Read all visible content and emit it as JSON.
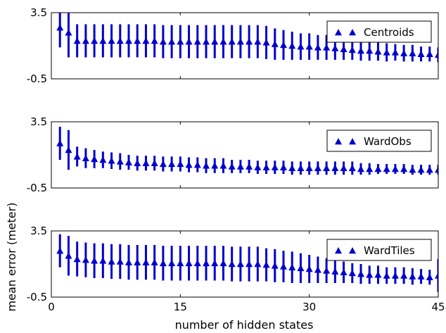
{
  "chart_data": {
    "type": "scatter",
    "xlabel": "number of hidden states",
    "ylabel": "mean error (meter)",
    "xlim": [
      0,
      45
    ],
    "xticks": [
      "0",
      "15",
      "30",
      "45"
    ],
    "ylim": [
      -0.5,
      3.5
    ],
    "yticks": [
      "3.5",
      "-0.5"
    ],
    "marker": "triangle-up",
    "color": "#0000cc",
    "grid": false,
    "legend_position": "top-right",
    "panels": [
      {
        "legend_label": "Centroids",
        "x": [
          1,
          2,
          3,
          4,
          5,
          6,
          7,
          8,
          9,
          10,
          11,
          12,
          13,
          14,
          15,
          16,
          17,
          18,
          19,
          20,
          21,
          22,
          23,
          24,
          25,
          26,
          27,
          28,
          29,
          30,
          31,
          32,
          33,
          34,
          35,
          36,
          37,
          38,
          39,
          40,
          41,
          42,
          43,
          44,
          45
        ],
        "y": [
          2.6,
          2.3,
          1.8,
          1.8,
          1.8,
          1.8,
          1.8,
          1.8,
          1.8,
          1.8,
          1.8,
          1.8,
          1.75,
          1.75,
          1.75,
          1.75,
          1.75,
          1.75,
          1.75,
          1.75,
          1.75,
          1.75,
          1.75,
          1.75,
          1.7,
          1.6,
          1.55,
          1.5,
          1.45,
          1.45,
          1.4,
          1.4,
          1.35,
          1.3,
          1.25,
          1.2,
          1.2,
          1.15,
          1.1,
          1.1,
          1.05,
          1.05,
          1.0,
          1.0,
          0.95
        ],
        "err": [
          1.2,
          1.5,
          1.0,
          1.0,
          1.0,
          1.0,
          1.0,
          1.0,
          1.0,
          1.0,
          1.0,
          1.0,
          1.0,
          1.0,
          1.0,
          1.0,
          1.0,
          1.0,
          1.0,
          1.0,
          1.0,
          1.0,
          1.0,
          1.0,
          1.0,
          0.95,
          0.9,
          0.85,
          0.8,
          0.8,
          0.75,
          0.75,
          0.7,
          0.65,
          0.6,
          0.6,
          0.6,
          0.55,
          0.55,
          0.5,
          0.5,
          0.5,
          0.45,
          0.45,
          0.45
        ]
      },
      {
        "legend_label": "WardObs",
        "x": [
          1,
          2,
          3,
          4,
          5,
          6,
          7,
          8,
          9,
          10,
          11,
          12,
          13,
          14,
          15,
          16,
          17,
          18,
          19,
          20,
          21,
          22,
          23,
          24,
          25,
          26,
          27,
          28,
          29,
          30,
          31,
          32,
          33,
          34,
          35,
          36,
          37,
          38,
          39,
          40,
          41,
          42,
          43,
          44,
          45
        ],
        "y": [
          2.2,
          1.8,
          1.4,
          1.3,
          1.25,
          1.2,
          1.15,
          1.1,
          1.05,
          1.0,
          1.0,
          1.0,
          0.95,
          0.95,
          0.95,
          0.9,
          0.9,
          0.85,
          0.85,
          0.85,
          0.8,
          0.8,
          0.8,
          0.75,
          0.75,
          0.75,
          0.75,
          0.7,
          0.7,
          0.7,
          0.7,
          0.7,
          0.7,
          0.7,
          0.7,
          0.65,
          0.65,
          0.65,
          0.65,
          0.65,
          0.65,
          0.6,
          0.6,
          0.6,
          0.6
        ],
        "err": [
          1.0,
          1.2,
          0.6,
          0.6,
          0.55,
          0.5,
          0.5,
          0.5,
          0.45,
          0.45,
          0.45,
          0.45,
          0.45,
          0.45,
          0.45,
          0.45,
          0.45,
          0.45,
          0.45,
          0.45,
          0.4,
          0.4,
          0.4,
          0.4,
          0.4,
          0.4,
          0.4,
          0.4,
          0.4,
          0.4,
          0.4,
          0.4,
          0.4,
          0.4,
          0.4,
          0.35,
          0.35,
          0.3,
          0.3,
          0.3,
          0.3,
          0.3,
          0.3,
          0.3,
          0.3
        ]
      },
      {
        "legend_label": "WardTiles",
        "x": [
          1,
          2,
          3,
          4,
          5,
          6,
          7,
          8,
          9,
          10,
          11,
          12,
          13,
          14,
          15,
          16,
          17,
          18,
          19,
          20,
          21,
          22,
          23,
          24,
          25,
          26,
          27,
          28,
          29,
          30,
          31,
          32,
          33,
          34,
          35,
          36,
          37,
          38,
          39,
          40,
          41,
          42,
          43,
          44,
          45
        ],
        "y": [
          2.3,
          2.0,
          1.8,
          1.75,
          1.7,
          1.7,
          1.65,
          1.65,
          1.6,
          1.6,
          1.6,
          1.6,
          1.55,
          1.55,
          1.55,
          1.55,
          1.55,
          1.55,
          1.55,
          1.55,
          1.5,
          1.5,
          1.5,
          1.5,
          1.45,
          1.4,
          1.35,
          1.3,
          1.25,
          1.2,
          1.15,
          1.1,
          1.05,
          1.0,
          0.95,
          0.9,
          0.85,
          0.85,
          0.8,
          0.8,
          0.8,
          0.75,
          0.75,
          0.7,
          0.8
        ],
        "err": [
          1.0,
          1.2,
          1.05,
          1.05,
          1.05,
          1.05,
          1.05,
          1.05,
          1.05,
          1.05,
          1.05,
          1.05,
          1.05,
          1.05,
          1.05,
          1.05,
          1.05,
          1.05,
          1.05,
          1.05,
          1.05,
          1.05,
          1.05,
          1.05,
          1.0,
          1.0,
          0.95,
          0.95,
          0.9,
          0.85,
          0.8,
          0.75,
          0.7,
          0.65,
          0.6,
          0.6,
          0.55,
          0.55,
          0.5,
          0.5,
          0.5,
          0.5,
          0.45,
          0.45,
          1.0
        ]
      }
    ]
  }
}
